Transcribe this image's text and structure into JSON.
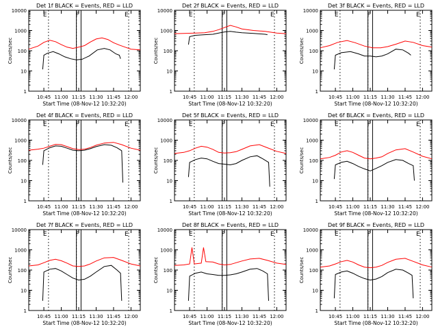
{
  "figure": {
    "ylabel": "Counts/sec",
    "xlabel": "Start Time (08-Nov-12 10:32:20)",
    "x_tick_labels": [
      "10:45",
      "11:00",
      "11:15",
      "11:30",
      "11:45",
      "12:00"
    ],
    "y_tick_labels": [
      "1",
      "10",
      "100",
      "1000",
      "10000"
    ],
    "colors": {
      "events": "#000000",
      "lld": "#ff0000",
      "background": "#ffffff"
    }
  },
  "chart_data": [
    {
      "type": "line",
      "title": "Det 1f BLACK = Events, RED = LLD",
      "xlabel": "Start Time (08-Nov-12 10:32:20)",
      "ylabel": "Counts/sec",
      "xlim": [
        "10:32",
        "12:08"
      ],
      "ylim": [
        1,
        10000
      ],
      "log_y": true,
      "flag_labels": [
        "E",
        "F",
        "E"
      ],
      "series": [
        {
          "name": "Events",
          "color": "#000000",
          "x": [
            "10:44",
            "10:45",
            "10:48",
            "10:53",
            "10:58",
            "11:03",
            "11:08",
            "11:13",
            "11:18",
            "11:24",
            "11:31",
            "11:37",
            "11:42",
            "11:47",
            "11:50",
            "11:51"
          ],
          "y": [
            12,
            60,
            75,
            90,
            70,
            50,
            40,
            35,
            38,
            55,
            110,
            130,
            110,
            70,
            60,
            40
          ]
        },
        {
          "name": "LLD",
          "color": "#ff0000",
          "x": [
            "10:32",
            "10:40",
            "10:45",
            "10:50",
            "10:55",
            "11:00",
            "11:05",
            "11:10",
            "11:15",
            "11:20",
            "11:25",
            "11:30",
            "11:35",
            "11:40",
            "11:45",
            "11:50",
            "11:55",
            "12:00",
            "12:08"
          ],
          "y": [
            120,
            170,
            260,
            330,
            280,
            200,
            150,
            130,
            150,
            180,
            270,
            380,
            430,
            360,
            250,
            190,
            150,
            120,
            110
          ]
        }
      ]
    },
    {
      "type": "line",
      "title": "Det 2f BLACK = Events, RED = LLD",
      "xlabel": "Start Time (08-Nov-12 10:32:20)",
      "ylabel": "Counts/sec",
      "xlim": [
        "10:32",
        "12:08"
      ],
      "ylim": [
        1,
        10000
      ],
      "log_y": true,
      "flag_labels": [
        "E",
        "F",
        "E"
      ],
      "series": [
        {
          "name": "Events",
          "color": "#000000",
          "x": [
            "10:44",
            "10:45",
            "10:50",
            "10:58",
            "11:05",
            "11:10",
            "11:15",
            "11:20",
            "11:25",
            "11:30",
            "11:40",
            "11:50",
            "11:52"
          ],
          "y": [
            200,
            500,
            580,
            620,
            650,
            750,
            850,
            900,
            830,
            780,
            720,
            650,
            620
          ]
        },
        {
          "name": "LLD",
          "color": "#ff0000",
          "x": [
            "10:32",
            "10:40",
            "10:50",
            "10:58",
            "11:05",
            "11:10",
            "11:15",
            "11:20",
            "11:25",
            "11:30",
            "11:40",
            "11:50",
            "12:00",
            "12:08"
          ],
          "y": [
            700,
            720,
            750,
            780,
            900,
            1100,
            1400,
            1800,
            1500,
            1200,
            1000,
            900,
            750,
            700
          ]
        }
      ]
    },
    {
      "type": "line",
      "title": "Det 3f BLACK = Events, RED = LLD",
      "xlabel": "Start Time (08-Nov-12 10:32:20)",
      "ylabel": "Counts/sec",
      "xlim": [
        "10:32",
        "12:08"
      ],
      "ylim": [
        1,
        10000
      ],
      "log_y": true,
      "flag_labels": [
        "E",
        "F",
        "E"
      ],
      "series": [
        {
          "name": "Events",
          "color": "#000000",
          "x": [
            "10:44",
            "10:45",
            "10:50",
            "10:58",
            "11:05",
            "11:10",
            "11:15",
            "11:20",
            "11:25",
            "11:30",
            "11:37",
            "11:43",
            "11:48",
            "11:50"
          ],
          "y": [
            12,
            60,
            80,
            90,
            70,
            55,
            55,
            50,
            55,
            70,
            120,
            110,
            75,
            60
          ]
        },
        {
          "name": "LLD",
          "color": "#ff0000",
          "x": [
            "10:32",
            "10:40",
            "10:47",
            "10:55",
            "11:02",
            "11:10",
            "11:17",
            "11:24",
            "11:30",
            "11:37",
            "11:45",
            "11:52",
            "12:00",
            "12:08"
          ],
          "y": [
            140,
            180,
            260,
            320,
            250,
            170,
            140,
            140,
            160,
            210,
            300,
            260,
            180,
            150
          ]
        }
      ]
    },
    {
      "type": "line",
      "title": "Det 4f BLACK = Events, RED = LLD",
      "xlabel": "Start Time (08-Nov-12 10:32:20)",
      "ylabel": "Counts/sec",
      "xlim": [
        "10:32",
        "12:08"
      ],
      "ylim": [
        1,
        10000
      ],
      "log_y": true,
      "flag_labels": [
        "E",
        "F",
        "E"
      ],
      "series": [
        {
          "name": "Events",
          "color": "#000000",
          "x": [
            "10:44",
            "10:45",
            "10:50",
            "10:55",
            "11:00",
            "11:05",
            "11:10",
            "11:15",
            "11:20",
            "11:25",
            "11:30",
            "11:37",
            "11:43",
            "11:48",
            "11:52",
            "11:53"
          ],
          "y": [
            60,
            300,
            420,
            520,
            500,
            400,
            320,
            300,
            320,
            380,
            480,
            600,
            560,
            420,
            300,
            8
          ]
        },
        {
          "name": "LLD",
          "color": "#ff0000",
          "x": [
            "10:32",
            "10:40",
            "10:45",
            "10:50",
            "10:55",
            "11:00",
            "11:05",
            "11:10",
            "11:15",
            "11:20",
            "11:25",
            "11:30",
            "11:37",
            "11:45",
            "11:52",
            "12:00",
            "12:08"
          ],
          "y": [
            320,
            360,
            400,
            500,
            620,
            600,
            480,
            380,
            340,
            360,
            430,
            560,
            720,
            780,
            600,
            400,
            320
          ]
        }
      ]
    },
    {
      "type": "line",
      "title": "Det 5f BLACK = Events, RED = LLD",
      "xlabel": "Start Time (08-Nov-12 10:32:20)",
      "ylabel": "Counts/sec",
      "xlim": [
        "10:32",
        "12:08"
      ],
      "ylim": [
        1,
        10000
      ],
      "log_y": true,
      "flag_labels": [
        "E",
        "F",
        "E"
      ],
      "series": [
        {
          "name": "Events",
          "color": "#000000",
          "x": [
            "10:44",
            "10:45",
            "10:50",
            "10:55",
            "11:00",
            "11:05",
            "11:10",
            "11:15",
            "11:20",
            "11:25",
            "11:30",
            "11:37",
            "11:43",
            "11:48",
            "11:53",
            "11:54"
          ],
          "y": [
            15,
            80,
            110,
            130,
            120,
            90,
            70,
            65,
            60,
            70,
            100,
            150,
            170,
            120,
            80,
            5
          ]
        },
        {
          "name": "LLD",
          "color": "#ff0000",
          "x": [
            "10:32",
            "10:40",
            "10:45",
            "10:50",
            "10:55",
            "11:00",
            "11:05",
            "11:10",
            "11:15",
            "11:20",
            "11:25",
            "11:30",
            "11:37",
            "11:45",
            "11:52",
            "12:00",
            "12:08"
          ],
          "y": [
            220,
            250,
            300,
            400,
            500,
            450,
            350,
            250,
            230,
            240,
            270,
            350,
            520,
            600,
            420,
            280,
            220
          ]
        }
      ]
    },
    {
      "type": "line",
      "title": "Det 6f BLACK = Events, RED = LLD",
      "xlabel": "Start Time (08-Nov-12 10:32:20)",
      "ylabel": "Counts/sec",
      "xlim": [
        "10:32",
        "12:08"
      ],
      "ylim": [
        1,
        10000
      ],
      "log_y": true,
      "flag_labels": [
        "E",
        "F",
        "E"
      ],
      "series": [
        {
          "name": "Events",
          "color": "#000000",
          "x": [
            "10:44",
            "10:45",
            "10:50",
            "10:55",
            "11:00",
            "11:05",
            "11:10",
            "11:15",
            "11:20",
            "11:25",
            "11:30",
            "11:37",
            "11:43",
            "11:48",
            "11:52",
            "11:53"
          ],
          "y": [
            12,
            60,
            80,
            90,
            70,
            50,
            38,
            30,
            40,
            55,
            80,
            110,
            100,
            70,
            55,
            10
          ]
        },
        {
          "name": "LLD",
          "color": "#ff0000",
          "x": [
            "10:32",
            "10:40",
            "10:45",
            "10:50",
            "10:55",
            "11:00",
            "11:05",
            "11:10",
            "11:15",
            "11:20",
            "11:25",
            "11:30",
            "11:37",
            "11:45",
            "11:52",
            "12:00",
            "12:08"
          ],
          "y": [
            120,
            140,
            180,
            260,
            300,
            250,
            180,
            130,
            120,
            130,
            150,
            220,
            330,
            380,
            260,
            160,
            120
          ]
        }
      ]
    },
    {
      "type": "line",
      "title": "Det 7f BLACK = Events, RED = LLD",
      "xlabel": "Start Time (08-Nov-12 10:32:20)",
      "ylabel": "Counts/sec",
      "xlim": [
        "10:32",
        "12:08"
      ],
      "ylim": [
        1,
        10000
      ],
      "log_y": true,
      "flag_labels": [
        "E",
        "F",
        "E"
      ],
      "series": [
        {
          "name": "Events",
          "color": "#000000",
          "x": [
            "10:44",
            "10:45",
            "10:50",
            "10:55",
            "11:00",
            "11:05",
            "11:10",
            "11:15",
            "11:20",
            "11:25",
            "11:30",
            "11:37",
            "11:43",
            "11:48",
            "11:51",
            "11:52"
          ],
          "y": [
            3,
            80,
            110,
            120,
            90,
            60,
            40,
            32,
            35,
            50,
            80,
            150,
            170,
            100,
            70,
            3
          ]
        },
        {
          "name": "LLD",
          "color": "#ff0000",
          "x": [
            "10:32",
            "10:40",
            "10:45",
            "10:50",
            "10:55",
            "11:00",
            "11:05",
            "11:10",
            "11:15",
            "11:20",
            "11:25",
            "11:30",
            "11:37",
            "11:45",
            "11:52",
            "12:00",
            "12:08"
          ],
          "y": [
            160,
            180,
            230,
            300,
            340,
            290,
            220,
            160,
            150,
            160,
            200,
            280,
            400,
            420,
            300,
            200,
            160
          ]
        }
      ]
    },
    {
      "type": "line",
      "title": "Det 8f BLACK = Events, RED = LLD",
      "xlabel": "Start Time (08-Nov-12 10:32:20)",
      "ylabel": "Counts/sec",
      "xlim": [
        "10:32",
        "12:08"
      ],
      "ylim": [
        1,
        10000
      ],
      "log_y": true,
      "flag_labels": [
        "E",
        "F",
        "E"
      ],
      "series": [
        {
          "name": "Events",
          "color": "#000000",
          "x": [
            "10:44",
            "10:45",
            "10:50",
            "10:55",
            "11:00",
            "11:05",
            "11:10",
            "11:15",
            "11:20",
            "11:25",
            "11:30",
            "11:37",
            "11:43",
            "11:48",
            "11:52",
            "11:53"
          ],
          "y": [
            3,
            50,
            70,
            80,
            65,
            60,
            55,
            55,
            58,
            65,
            80,
            110,
            120,
            90,
            65,
            3
          ]
        },
        {
          "name": "LLD",
          "color": "#ff0000",
          "x": [
            "10:32",
            "10:40",
            "10:45",
            "10:47",
            "10:49",
            "10:55",
            "10:57",
            "10:59",
            "11:05",
            "11:10",
            "11:15",
            "11:20",
            "11:25",
            "11:30",
            "11:37",
            "11:45",
            "11:52",
            "12:00",
            "12:08"
          ],
          "y": [
            170,
            180,
            200,
            1300,
            200,
            220,
            1300,
            260,
            250,
            200,
            180,
            190,
            230,
            280,
            350,
            380,
            300,
            220,
            190
          ]
        }
      ]
    },
    {
      "type": "line",
      "title": "Det 9f BLACK = Events, RED = LLD",
      "xlabel": "Start Time (08-Nov-12 10:32:20)",
      "ylabel": "Counts/sec",
      "xlim": [
        "10:32",
        "12:08"
      ],
      "ylim": [
        1,
        10000
      ],
      "log_y": true,
      "flag_labels": [
        "E",
        "F",
        "E"
      ],
      "series": [
        {
          "name": "Events",
          "color": "#000000",
          "x": [
            "10:44",
            "10:45",
            "10:50",
            "10:55",
            "11:00",
            "11:05",
            "11:10",
            "11:15",
            "11:20",
            "11:25",
            "11:30",
            "11:37",
            "11:43",
            "11:48",
            "11:51",
            "11:52"
          ],
          "y": [
            4,
            60,
            80,
            90,
            70,
            50,
            38,
            32,
            36,
            48,
            75,
            110,
            100,
            70,
            55,
            4
          ]
        },
        {
          "name": "LLD",
          "color": "#ff0000",
          "x": [
            "10:32",
            "10:40",
            "10:45",
            "10:50",
            "10:55",
            "11:00",
            "11:05",
            "11:10",
            "11:15",
            "11:20",
            "11:25",
            "11:30",
            "11:37",
            "11:45",
            "11:52",
            "12:00",
            "12:08"
          ],
          "y": [
            140,
            160,
            200,
            260,
            300,
            250,
            180,
            140,
            130,
            140,
            170,
            240,
            340,
            380,
            270,
            180,
            140
          ]
        }
      ]
    }
  ]
}
